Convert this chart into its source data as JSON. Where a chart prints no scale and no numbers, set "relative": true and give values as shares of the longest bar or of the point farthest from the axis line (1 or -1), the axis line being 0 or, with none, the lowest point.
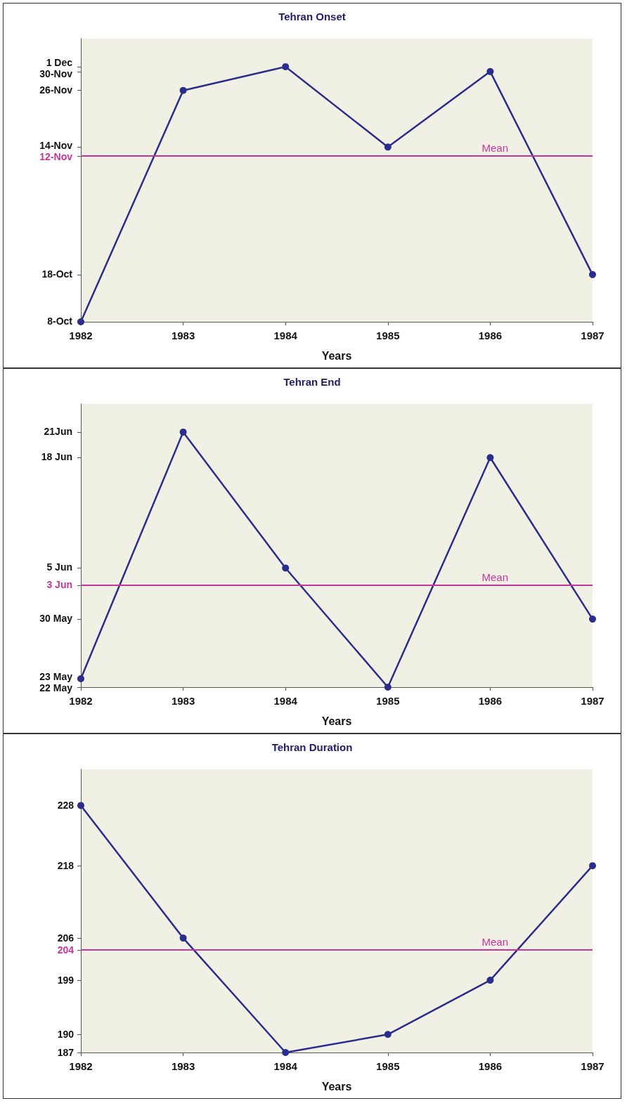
{
  "chart_data": [
    {
      "type": "line",
      "title": "Tehran Onset",
      "xlabel": "Years",
      "categories": [
        "1982",
        "1983",
        "1984",
        "1985",
        "1986",
        "1987"
      ],
      "relative": true,
      "series": [
        {
          "color": "#2b2d8c",
          "values": [
            0,
            0.907,
            1,
            0.685,
            0.981,
            0.185
          ]
        }
      ],
      "annotations": [
        "8-Oct",
        "18-Oct",
        "12-Nov",
        "14-Nov",
        "26-Nov",
        "30-Nov",
        "1 Dec"
      ],
      "ref_lines": [
        {
          "axis": "y",
          "value": 0.648,
          "label": "Mean",
          "color": "#c8359a"
        }
      ],
      "marker": "circle",
      "line_style": "solid"
    },
    {
      "type": "line",
      "title": "Tehran End",
      "xlabel": "Years",
      "categories": [
        "1982",
        "1983",
        "1984",
        "1985",
        "1986",
        "1987"
      ],
      "relative": true,
      "series": [
        {
          "color": "#2b2d8c",
          "values": [
            0.033,
            1,
            0.467,
            0,
            0.9,
            0.267
          ]
        }
      ],
      "annotations": [
        "22 May",
        "23 May",
        "30 May",
        "3 Jun",
        "5 Jun",
        "18 Jun",
        "21Jun"
      ],
      "ref_lines": [
        {
          "axis": "y",
          "value": 0.4,
          "label": "Mean",
          "color": "#c8359a"
        }
      ],
      "marker": "circle",
      "line_style": "solid"
    },
    {
      "type": "line",
      "title": "Tehran Duration",
      "xlabel": "Years",
      "categories": [
        "1982",
        "1983",
        "1984",
        "1985",
        "1986",
        "1987"
      ],
      "series": [
        {
          "color": "#2b2d8c",
          "values": [
            228,
            206,
            187,
            190,
            199,
            218
          ]
        }
      ],
      "ylim": [
        187,
        234
      ],
      "yticks": [
        187,
        190,
        199,
        204,
        206,
        218,
        228
      ],
      "ref_lines": [
        {
          "axis": "y",
          "value": 204,
          "label": "Mean",
          "color": "#c8359a"
        }
      ],
      "marker": "circle",
      "line_style": "solid"
    }
  ]
}
